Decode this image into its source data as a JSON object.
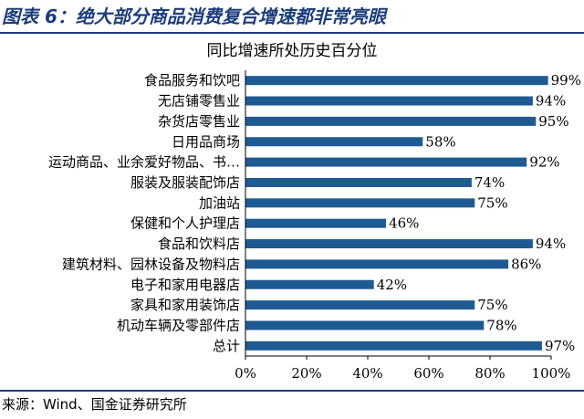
{
  "figure": {
    "title": "图表 6：绝大部分商品消费复合增速都非常亮眼",
    "source": "来源：Wind、国金证券研究所"
  },
  "colors": {
    "bar": "#1f5b93",
    "header": "#1b3d7a"
  },
  "chart_data": {
    "type": "bar",
    "orientation": "horizontal",
    "title": "同比增速所处历史百分位",
    "categories": [
      "食品服务和饮吧",
      "无店铺零售业",
      "杂货店零售业",
      "日用品商场",
      "运动商品、业余爱好物品、书…",
      "服装及服装配饰店",
      "加油站",
      "保健和个人护理店",
      "食品和饮料店",
      "建筑材料、园林设备及物料店",
      "电子和家用电器店",
      "家具和家用装饰店",
      "机动车辆及零部件店",
      "总计"
    ],
    "values": [
      99,
      94,
      95,
      58,
      92,
      74,
      75,
      46,
      94,
      86,
      42,
      75,
      78,
      97
    ],
    "value_labels": [
      "99%",
      "94%",
      "95%",
      "58%",
      "92%",
      "74%",
      "75%",
      "46%",
      "94%",
      "86%",
      "42%",
      "75%",
      "78%",
      "97%"
    ],
    "xlim": [
      0,
      100
    ],
    "xticks": [
      0,
      20,
      40,
      60,
      80,
      100
    ],
    "xtick_labels": [
      "0%",
      "20%",
      "40%",
      "60%",
      "80%",
      "100%"
    ],
    "grid": false,
    "legend": "none"
  }
}
